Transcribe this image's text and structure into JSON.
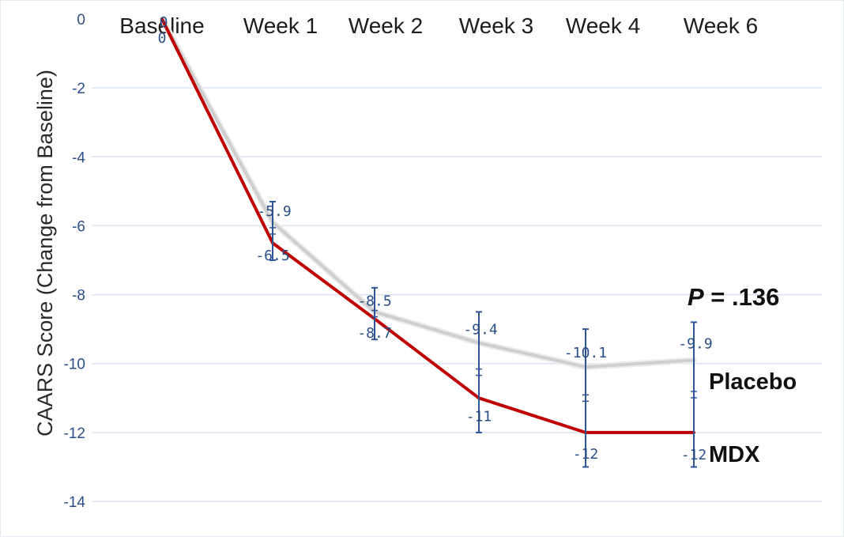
{
  "chart_data": {
    "type": "line",
    "title": "",
    "categories": [
      "Baseline",
      "Week 1",
      "Week 2",
      "Week 3",
      "Week 4",
      "Week 6"
    ],
    "ylabel": "CAARS Score (Change from Baseline)",
    "ylim": [
      -14,
      0
    ],
    "yticks": [
      0,
      -2,
      -4,
      -6,
      -8,
      -10,
      -12,
      -14
    ],
    "grid": true,
    "annotation": {
      "label": "P",
      "value": " = .136"
    },
    "series": [
      {
        "name": "Placebo",
        "values": [
          0,
          -5.9,
          -8.5,
          -9.4,
          -10.1,
          -9.9
        ],
        "labels": [
          "0",
          "-5.9",
          "-8.5",
          "-9.4",
          "-10.1",
          "-9.9"
        ],
        "color": "#cfcfcf"
      },
      {
        "name": "MDX",
        "values": [
          0,
          -6.5,
          -8.7,
          -11,
          -12,
          -12
        ],
        "labels": [
          "0",
          "-6.5",
          "-8.7",
          "-11",
          "-12",
          "-12"
        ],
        "color": "#c00000"
      }
    ],
    "error_bars": {
      "categories": [
        "Week 1",
        "Week 2",
        "Week 3",
        "Week 4",
        "Week 6"
      ],
      "low": [
        -7.0,
        -9.3,
        -12.0,
        -13.0,
        -13.0
      ],
      "high": [
        -5.3,
        -7.8,
        -8.5,
        -9.0,
        -8.8
      ],
      "color": "#2f5597"
    }
  }
}
